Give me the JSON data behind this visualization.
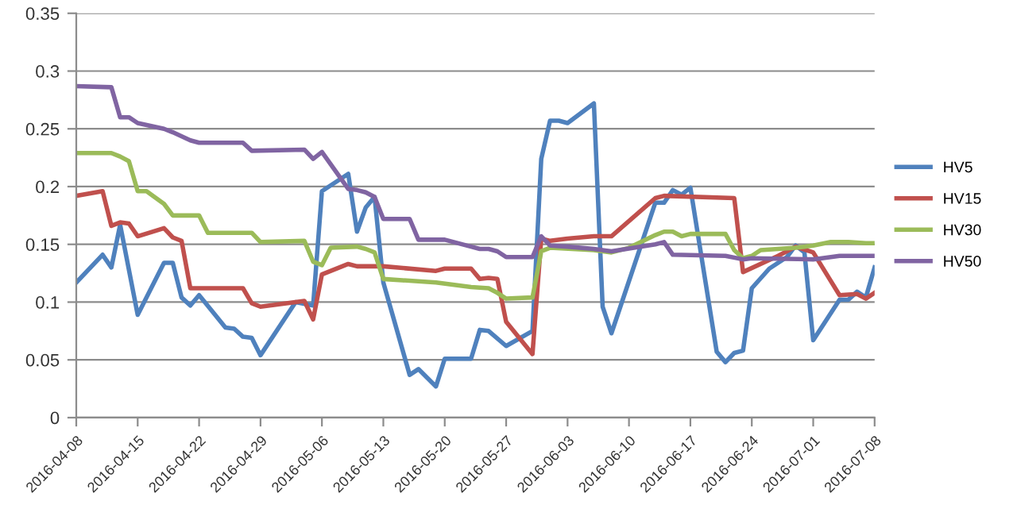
{
  "chart_data": {
    "type": "line",
    "series": [
      {
        "name": "HV5",
        "color": "#4f81bd",
        "x": [
          "2016-04-08",
          "2016-04-11",
          "2016-04-12",
          "2016-04-13",
          "2016-04-15",
          "2016-04-18",
          "2016-04-19",
          "2016-04-20",
          "2016-04-21",
          "2016-04-22",
          "2016-04-25",
          "2016-04-26",
          "2016-04-27",
          "2016-04-28",
          "2016-04-29",
          "2016-05-03",
          "2016-05-05",
          "2016-05-06",
          "2016-05-09",
          "2016-05-10",
          "2016-05-11",
          "2016-05-12",
          "2016-05-13",
          "2016-05-16",
          "2016-05-17",
          "2016-05-19",
          "2016-05-20",
          "2016-05-23",
          "2016-05-24",
          "2016-05-25",
          "2016-05-27",
          "2016-05-30",
          "2016-05-31",
          "2016-06-01",
          "2016-06-02",
          "2016-06-03",
          "2016-06-06",
          "2016-06-07",
          "2016-06-08",
          "2016-06-13",
          "2016-06-14",
          "2016-06-15",
          "2016-06-16",
          "2016-06-17",
          "2016-06-20",
          "2016-06-21",
          "2016-06-22",
          "2016-06-23",
          "2016-06-24",
          "2016-06-26",
          "2016-06-28",
          "2016-06-29",
          "2016-06-30",
          "2016-07-01",
          "2016-07-04",
          "2016-07-05",
          "2016-07-06",
          "2016-07-07",
          "2016-07-08"
        ],
        "values": [
          0.117,
          0.141,
          0.13,
          0.167,
          0.089,
          0.134,
          0.134,
          0.104,
          0.097,
          0.106,
          0.078,
          0.077,
          0.07,
          0.069,
          0.054,
          0.1,
          0.097,
          0.196,
          0.211,
          0.161,
          0.182,
          0.191,
          0.117,
          0.037,
          0.042,
          0.027,
          0.051,
          0.051,
          0.076,
          0.075,
          0.062,
          0.075,
          0.224,
          0.257,
          0.257,
          0.255,
          0.272,
          0.096,
          0.073,
          0.186,
          0.186,
          0.197,
          0.193,
          0.199,
          0.057,
          0.048,
          0.056,
          0.058,
          0.112,
          0.129,
          0.139,
          0.149,
          0.143,
          0.067,
          0.102,
          0.102,
          0.109,
          0.104,
          0.13
        ]
      },
      {
        "name": "HV15",
        "color": "#c0504d",
        "x": [
          "2016-04-08",
          "2016-04-11",
          "2016-04-12",
          "2016-04-13",
          "2016-04-14",
          "2016-04-15",
          "2016-04-18",
          "2016-04-19",
          "2016-04-20",
          "2016-04-21",
          "2016-04-27",
          "2016-04-28",
          "2016-04-29",
          "2016-05-04",
          "2016-05-05",
          "2016-05-06",
          "2016-05-09",
          "2016-05-10",
          "2016-05-13",
          "2016-05-19",
          "2016-05-20",
          "2016-05-23",
          "2016-05-24",
          "2016-05-25",
          "2016-05-26",
          "2016-05-27",
          "2016-05-30",
          "2016-05-31",
          "2016-06-01",
          "2016-06-03",
          "2016-06-06",
          "2016-06-08",
          "2016-06-13",
          "2016-06-14",
          "2016-06-22",
          "2016-06-23",
          "2016-06-27",
          "2016-06-29",
          "2016-07-01",
          "2016-07-04",
          "2016-07-06",
          "2016-07-07",
          "2016-07-08"
        ],
        "values": [
          0.192,
          0.196,
          0.166,
          0.169,
          0.168,
          0.157,
          0.164,
          0.156,
          0.153,
          0.112,
          0.112,
          0.099,
          0.096,
          0.101,
          0.085,
          0.124,
          0.133,
          0.131,
          0.131,
          0.127,
          0.129,
          0.129,
          0.12,
          0.121,
          0.12,
          0.083,
          0.055,
          0.155,
          0.153,
          0.155,
          0.157,
          0.157,
          0.19,
          0.192,
          0.19,
          0.126,
          0.14,
          0.148,
          0.143,
          0.106,
          0.107,
          0.103,
          0.108
        ]
      },
      {
        "name": "HV30",
        "color": "#9bbb59",
        "x": [
          "2016-04-08",
          "2016-04-12",
          "2016-04-13",
          "2016-04-14",
          "2016-04-15",
          "2016-04-16",
          "2016-04-18",
          "2016-04-19",
          "2016-04-22",
          "2016-04-23",
          "2016-04-28",
          "2016-04-29",
          "2016-05-04",
          "2016-05-05",
          "2016-05-06",
          "2016-05-07",
          "2016-05-10",
          "2016-05-11",
          "2016-05-12",
          "2016-05-13",
          "2016-05-19",
          "2016-05-23",
          "2016-05-25",
          "2016-05-26",
          "2016-05-27",
          "2016-05-30",
          "2016-05-31",
          "2016-06-01",
          "2016-06-06",
          "2016-06-08",
          "2016-06-10",
          "2016-06-13",
          "2016-06-14",
          "2016-06-15",
          "2016-06-16",
          "2016-06-17",
          "2016-06-21",
          "2016-06-22",
          "2016-06-23",
          "2016-06-24",
          "2016-06-25",
          "2016-06-29",
          "2016-06-30",
          "2016-07-01",
          "2016-07-03",
          "2016-07-05",
          "2016-07-07",
          "2016-07-08"
        ],
        "values": [
          0.229,
          0.229,
          0.226,
          0.222,
          0.196,
          0.196,
          0.185,
          0.175,
          0.175,
          0.16,
          0.16,
          0.152,
          0.153,
          0.135,
          0.132,
          0.147,
          0.148,
          0.146,
          0.143,
          0.12,
          0.117,
          0.113,
          0.112,
          0.108,
          0.103,
          0.104,
          0.144,
          0.147,
          0.145,
          0.143,
          0.147,
          0.158,
          0.161,
          0.161,
          0.157,
          0.159,
          0.159,
          0.145,
          0.138,
          0.14,
          0.145,
          0.147,
          0.148,
          0.149,
          0.152,
          0.152,
          0.151,
          0.151
        ]
      },
      {
        "name": "HV50",
        "color": "#8064a2",
        "x": [
          "2016-04-08",
          "2016-04-12",
          "2016-04-13",
          "2016-04-14",
          "2016-04-15",
          "2016-04-18",
          "2016-04-19",
          "2016-04-21",
          "2016-04-22",
          "2016-04-27",
          "2016-04-28",
          "2016-05-04",
          "2016-05-05",
          "2016-05-06",
          "2016-05-09",
          "2016-05-10",
          "2016-05-11",
          "2016-05-12",
          "2016-05-13",
          "2016-05-16",
          "2016-05-17",
          "2016-05-20",
          "2016-05-23",
          "2016-05-24",
          "2016-05-25",
          "2016-05-26",
          "2016-05-27",
          "2016-05-30",
          "2016-05-31",
          "2016-06-01",
          "2016-06-03",
          "2016-06-06",
          "2016-06-08",
          "2016-06-13",
          "2016-06-14",
          "2016-06-15",
          "2016-06-21",
          "2016-06-23",
          "2016-06-24",
          "2016-07-01",
          "2016-07-03",
          "2016-07-04",
          "2016-07-08"
        ],
        "values": [
          0.287,
          0.286,
          0.26,
          0.26,
          0.255,
          0.25,
          0.247,
          0.24,
          0.238,
          0.238,
          0.231,
          0.232,
          0.224,
          0.23,
          0.198,
          0.197,
          0.195,
          0.191,
          0.172,
          0.172,
          0.154,
          0.154,
          0.148,
          0.146,
          0.146,
          0.144,
          0.139,
          0.139,
          0.157,
          0.149,
          0.148,
          0.146,
          0.144,
          0.15,
          0.152,
          0.141,
          0.14,
          0.137,
          0.138,
          0.137,
          0.139,
          0.14,
          0.14
        ]
      }
    ],
    "xlim": [
      "2016-04-08",
      "2016-07-08"
    ],
    "xticks": [
      "2016-04-08",
      "2016-04-15",
      "2016-04-22",
      "2016-04-29",
      "2016-05-06",
      "2016-05-13",
      "2016-05-20",
      "2016-05-27",
      "2016-06-03",
      "2016-06-10",
      "2016-06-17",
      "2016-06-24",
      "2016-07-01",
      "2016-07-08"
    ],
    "ylim": [
      0,
      0.35
    ],
    "yticks": [
      0,
      0.05,
      0.1,
      0.15,
      0.2,
      0.25,
      0.3,
      0.35
    ],
    "grid": "y",
    "legend": "right",
    "line_style": "solid",
    "marker": "none"
  }
}
